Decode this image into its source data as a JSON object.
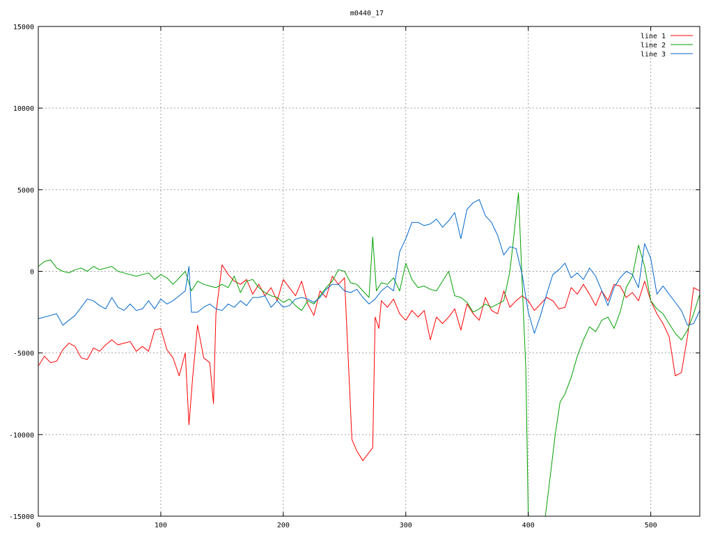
{
  "chart_data": {
    "type": "line",
    "title": "m0440_17",
    "xlabel": "",
    "ylabel": "",
    "xlim": [
      0,
      540
    ],
    "ylim": [
      -15000,
      15000
    ],
    "x_ticks": [
      0,
      100,
      200,
      300,
      400,
      500
    ],
    "y_ticks": [
      -15000,
      -10000,
      -5000,
      0,
      5000,
      10000,
      15000
    ],
    "grid": true,
    "legend_position": "top-right",
    "series": [
      {
        "name": "line 1",
        "color": "#ff0000",
        "x": [
          0,
          5,
          10,
          15,
          20,
          25,
          30,
          35,
          40,
          45,
          50,
          55,
          60,
          65,
          70,
          75,
          80,
          85,
          90,
          95,
          100,
          105,
          110,
          115,
          120,
          123,
          126,
          130,
          135,
          140,
          143,
          145,
          150,
          155,
          160,
          165,
          170,
          175,
          180,
          185,
          190,
          195,
          200,
          205,
          210,
          215,
          220,
          225,
          230,
          235,
          240,
          245,
          250,
          254,
          256,
          260,
          265,
          270,
          273,
          275,
          278,
          280,
          285,
          290,
          295,
          300,
          305,
          310,
          315,
          320,
          325,
          330,
          335,
          340,
          345,
          350,
          355,
          360,
          365,
          370,
          375,
          380,
          385,
          390,
          395,
          400,
          405,
          410,
          415,
          420,
          425,
          430,
          435,
          440,
          445,
          450,
          455,
          460,
          465,
          470,
          475,
          480,
          485,
          490,
          495,
          500,
          505,
          510,
          515,
          520,
          525,
          530,
          535,
          540
        ],
        "y": [
          -5800,
          -5200,
          -5600,
          -5500,
          -4800,
          -4400,
          -4600,
          -5300,
          -5400,
          -4700,
          -4900,
          -4500,
          -4200,
          -4500,
          -4400,
          -4300,
          -4900,
          -4600,
          -4900,
          -3600,
          -3500,
          -4800,
          -5300,
          -6400,
          -5000,
          -9400,
          -6500,
          -3300,
          -5300,
          -5600,
          -8100,
          -2600,
          400,
          -200,
          -600,
          -800,
          -500,
          -1400,
          -800,
          -1500,
          -1000,
          -1800,
          -500,
          -1000,
          -1500,
          -600,
          -2000,
          -2700,
          -1200,
          -1600,
          -300,
          -800,
          -400,
          -7000,
          -10300,
          -11000,
          -11600,
          -11100,
          -10800,
          -2800,
          -3500,
          -1800,
          -2200,
          -1700,
          -2600,
          -3000,
          -2400,
          -2800,
          -2400,
          -4200,
          -2800,
          -3200,
          -2800,
          -2300,
          -3600,
          -2000,
          -2600,
          -3000,
          -1600,
          -2400,
          -2600,
          -1200,
          -2200,
          -1800,
          -1500,
          -1800,
          -2400,
          -2000,
          -1600,
          -1800,
          -2300,
          -2200,
          -1000,
          -1400,
          -800,
          -1400,
          -2100,
          -1200,
          -1800,
          -800,
          -900,
          -1600,
          -1300,
          -1800,
          -600,
          -1800,
          -2600,
          -3200,
          -4000,
          -6400,
          -6200,
          -4000,
          -1000,
          -1200
        ]
      },
      {
        "name": "line 2",
        "color": "#00a000",
        "x": [
          0,
          5,
          10,
          15,
          20,
          25,
          30,
          35,
          40,
          45,
          50,
          55,
          60,
          65,
          70,
          75,
          80,
          85,
          90,
          95,
          100,
          105,
          110,
          115,
          120,
          125,
          130,
          135,
          140,
          145,
          150,
          155,
          160,
          165,
          170,
          175,
          180,
          185,
          190,
          195,
          200,
          205,
          210,
          215,
          220,
          225,
          230,
          235,
          240,
          245,
          250,
          255,
          260,
          265,
          270,
          273,
          276,
          280,
          285,
          290,
          295,
          300,
          305,
          310,
          315,
          320,
          325,
          330,
          335,
          340,
          345,
          350,
          355,
          360,
          365,
          370,
          375,
          380,
          385,
          388,
          392,
          396,
          398,
          400,
          402,
          405,
          410,
          414,
          418,
          422,
          426,
          430,
          435,
          440,
          445,
          450,
          455,
          460,
          465,
          470,
          475,
          480,
          485,
          490,
          495,
          500,
          505,
          510,
          515,
          520,
          525,
          530,
          535,
          540
        ],
        "y": [
          300,
          600,
          700,
          200,
          0,
          -100,
          100,
          200,
          0,
          300,
          100,
          200,
          300,
          0,
          -100,
          -200,
          -300,
          -200,
          -100,
          -500,
          -200,
          -400,
          -800,
          -400,
          0,
          -1200,
          -600,
          -800,
          -900,
          -1000,
          -800,
          -1000,
          -300,
          -1300,
          -600,
          -500,
          -1000,
          -1300,
          -1500,
          -1600,
          -1900,
          -1700,
          -2100,
          -2400,
          -1800,
          -2000,
          -1500,
          -1000,
          -600,
          100,
          0,
          -700,
          -800,
          -1200,
          -1600,
          2100,
          -1200,
          -700,
          -800,
          -400,
          -1200,
          500,
          -500,
          -1000,
          -900,
          -1100,
          -1200,
          -600,
          0,
          -1500,
          -1600,
          -1900,
          -2500,
          -2300,
          -2000,
          -2200,
          -2000,
          -1800,
          0,
          2000,
          4800,
          -2500,
          -6000,
          -15000,
          -17000,
          -17000,
          -17000,
          -15000,
          -12500,
          -10000,
          -8000,
          -7500,
          -6500,
          -5200,
          -4200,
          -3400,
          -3700,
          -3000,
          -2800,
          -3500,
          -2500,
          -1000,
          -300,
          1600,
          300,
          -1800,
          -2300,
          -2600,
          -3200,
          -3800,
          -4200,
          -3600,
          -2600,
          -1400
        ]
      },
      {
        "name": "line 3",
        "color": "#0066cc",
        "x": [
          0,
          5,
          10,
          15,
          20,
          25,
          30,
          35,
          40,
          45,
          50,
          55,
          60,
          65,
          70,
          75,
          80,
          85,
          90,
          95,
          100,
          105,
          110,
          115,
          120,
          123,
          125,
          130,
          135,
          140,
          145,
          150,
          155,
          160,
          165,
          170,
          175,
          180,
          185,
          190,
          195,
          200,
          205,
          210,
          215,
          220,
          225,
          230,
          235,
          240,
          245,
          250,
          255,
          260,
          265,
          270,
          275,
          280,
          285,
          290,
          295,
          300,
          305,
          310,
          315,
          320,
          325,
          330,
          335,
          340,
          345,
          350,
          355,
          360,
          365,
          370,
          375,
          380,
          385,
          390,
          395,
          400,
          405,
          410,
          415,
          420,
          425,
          430,
          435,
          440,
          445,
          450,
          455,
          460,
          465,
          470,
          475,
          480,
          485,
          490,
          495,
          500,
          505,
          510,
          515,
          520,
          525,
          530,
          535,
          540
        ],
        "y": [
          -2900,
          -2800,
          -2700,
          -2600,
          -3300,
          -3000,
          -2700,
          -2200,
          -1700,
          -1800,
          -2100,
          -2300,
          -1600,
          -2200,
          -2400,
          -2000,
          -2400,
          -2300,
          -1800,
          -2300,
          -1700,
          -2000,
          -1800,
          -1500,
          -1200,
          300,
          -2500,
          -2500,
          -2200,
          -2000,
          -2300,
          -2400,
          -2000,
          -2200,
          -1800,
          -2100,
          -1600,
          -1600,
          -1500,
          -2200,
          -1800,
          -2200,
          -2100,
          -1700,
          -1600,
          -1700,
          -1900,
          -1600,
          -1100,
          -800,
          -800,
          -1200,
          -1300,
          -1100,
          -1600,
          -2000,
          -1700,
          -1200,
          -900,
          -1200,
          1200,
          2000,
          3000,
          3000,
          2800,
          2900,
          3200,
          2700,
          3100,
          3600,
          2000,
          3800,
          4200,
          4400,
          3400,
          3000,
          2200,
          1000,
          1500,
          1400,
          -200,
          -2500,
          -3800,
          -2700,
          -1400,
          -200,
          100,
          500,
          -400,
          -100,
          -500,
          200,
          -300,
          -1200,
          -2100,
          -1000,
          -400,
          0,
          -200,
          -1000,
          1700,
          800,
          -1400,
          -900,
          -1400,
          -1900,
          -2400,
          -3300,
          -3200,
          -2400
        ]
      }
    ]
  }
}
